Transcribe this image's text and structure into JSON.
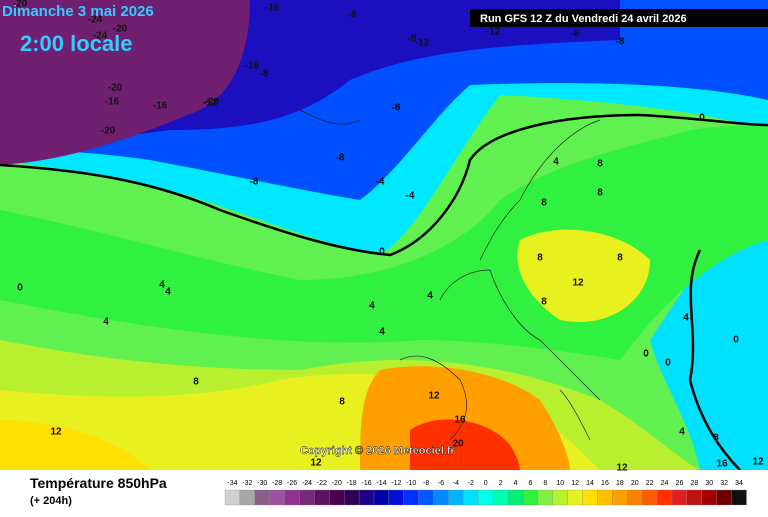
{
  "header": {
    "date": "Dimanche 3 mai 2026",
    "time": "2:00 locale",
    "run": "Run GFS 12 Z du Vendredi 24 avril 2026",
    "copyright": "Copyright © 2026 Meteociel.fr"
  },
  "footer": {
    "title": "Température 850hPa",
    "lead": "(+ 204h)"
  },
  "contour_labels": [
    "-20",
    "-16",
    "-8",
    "-24",
    "-20",
    "-24",
    "-20",
    "-16",
    "-16",
    "-8",
    "-8",
    "-12",
    "-20",
    "-16",
    "-12",
    "-20",
    "-8",
    "-8",
    "-8",
    "-8",
    "-12",
    "-8",
    "-4",
    "-4",
    "0",
    "0",
    "0",
    "4",
    "4",
    "4",
    "4",
    "4",
    "4",
    "4",
    "8",
    "8",
    "8",
    "8",
    "12",
    "8",
    "8",
    "8",
    "12",
    "12",
    "12",
    "16",
    "20",
    "8",
    "12",
    "16",
    "4",
    "0",
    "0",
    "0",
    "4",
    "8",
    "12"
  ],
  "legend": {
    "values": [
      -34,
      -32,
      -30,
      -28,
      -26,
      -24,
      -22,
      -20,
      -18,
      -16,
      -14,
      -12,
      -10,
      -8,
      -6,
      -4,
      -2,
      0,
      2,
      4,
      6,
      8,
      10,
      12,
      14,
      16,
      18,
      20,
      22,
      24,
      26,
      28,
      30,
      32,
      34
    ],
    "colors": [
      "#d0d0d0",
      "#a8a8a8",
      "#886088",
      "#a050a0",
      "#903090",
      "#782878",
      "#601060",
      "#4b0050",
      "#300058",
      "#1a0088",
      "#0000a8",
      "#0010d8",
      "#0030ff",
      "#0058ff",
      "#0088ff",
      "#00b4ff",
      "#00e0ff",
      "#00ffe8",
      "#00ffb0",
      "#00f070",
      "#30f040",
      "#80f040",
      "#b8f030",
      "#e8f020",
      "#ffe000",
      "#ffc000",
      "#ffa000",
      "#ff8000",
      "#ff5a00",
      "#ff3000",
      "#e02020",
      "#c01010",
      "#a00000",
      "#700000",
      "#101010"
    ]
  }
}
